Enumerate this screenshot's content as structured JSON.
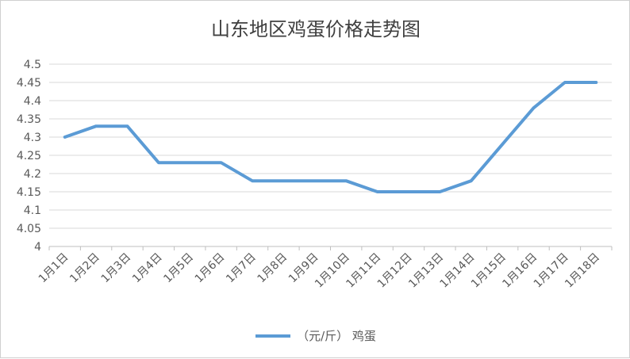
{
  "chart_data": {
    "type": "line",
    "title": "山东地区鸡蛋价格走势图",
    "categories": [
      "1月1日",
      "1月2日",
      "1月3日",
      "1月4日",
      "1月5日",
      "1月6日",
      "1月7日",
      "1月8日",
      "1月9日",
      "1月10日",
      "1月11日",
      "1月12日",
      "1月13日",
      "1月14日",
      "1月15日",
      "1月16日",
      "1月17日",
      "1月18日"
    ],
    "series": [
      {
        "name": "（元/斤） 鸡蛋",
        "color": "#5b9bd5",
        "values": [
          4.3,
          4.33,
          4.33,
          4.23,
          4.23,
          4.23,
          4.18,
          4.18,
          4.18,
          4.18,
          4.15,
          4.15,
          4.15,
          4.18,
          4.28,
          4.38,
          4.45,
          4.45
        ]
      }
    ],
    "ylim": [
      4,
      4.5
    ],
    "yticks": [
      "4",
      "4.05",
      "4.1",
      "4.15",
      "4.2",
      "4.25",
      "4.3",
      "4.35",
      "4.4",
      "4.45",
      "4.5"
    ],
    "grid": true,
    "legend_position": "bottom"
  }
}
